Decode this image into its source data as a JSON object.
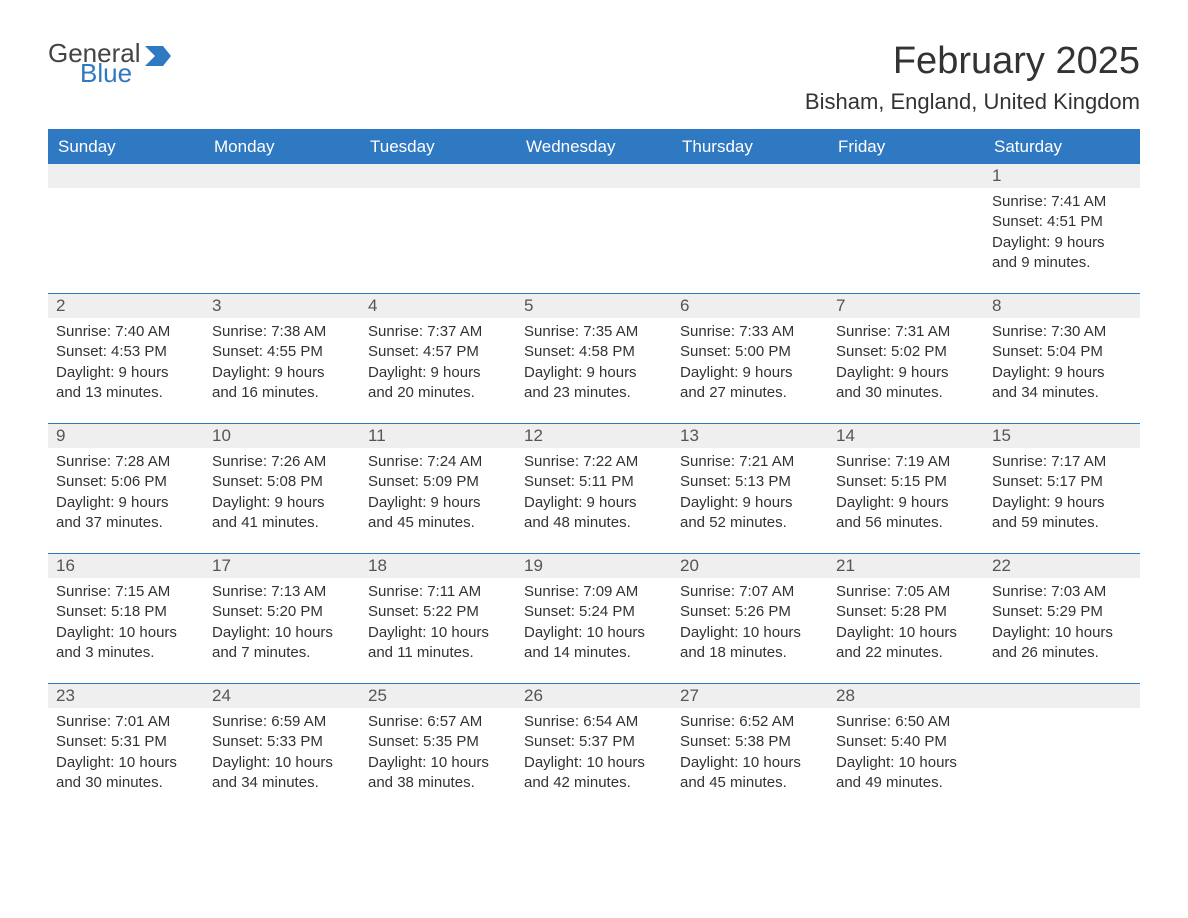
{
  "logo": {
    "word1": "General",
    "word2": "Blue"
  },
  "title": "February 2025",
  "location": "Bisham, England, United Kingdom",
  "colors": {
    "brand_blue": "#2f78c2",
    "header_text": "#ffffff",
    "daynum_bg": "#efefef",
    "text": "#333333",
    "background": "#ffffff"
  },
  "days_of_week": [
    "Sunday",
    "Monday",
    "Tuesday",
    "Wednesday",
    "Thursday",
    "Friday",
    "Saturday"
  ],
  "weeks": [
    [
      {
        "empty": true
      },
      {
        "empty": true
      },
      {
        "empty": true
      },
      {
        "empty": true
      },
      {
        "empty": true
      },
      {
        "empty": true
      },
      {
        "day": 1,
        "sunrise": "7:41 AM",
        "sunset": "4:51 PM",
        "daylight": "9 hours and 9 minutes."
      }
    ],
    [
      {
        "day": 2,
        "sunrise": "7:40 AM",
        "sunset": "4:53 PM",
        "daylight": "9 hours and 13 minutes."
      },
      {
        "day": 3,
        "sunrise": "7:38 AM",
        "sunset": "4:55 PM",
        "daylight": "9 hours and 16 minutes."
      },
      {
        "day": 4,
        "sunrise": "7:37 AM",
        "sunset": "4:57 PM",
        "daylight": "9 hours and 20 minutes."
      },
      {
        "day": 5,
        "sunrise": "7:35 AM",
        "sunset": "4:58 PM",
        "daylight": "9 hours and 23 minutes."
      },
      {
        "day": 6,
        "sunrise": "7:33 AM",
        "sunset": "5:00 PM",
        "daylight": "9 hours and 27 minutes."
      },
      {
        "day": 7,
        "sunrise": "7:31 AM",
        "sunset": "5:02 PM",
        "daylight": "9 hours and 30 minutes."
      },
      {
        "day": 8,
        "sunrise": "7:30 AM",
        "sunset": "5:04 PM",
        "daylight": "9 hours and 34 minutes."
      }
    ],
    [
      {
        "day": 9,
        "sunrise": "7:28 AM",
        "sunset": "5:06 PM",
        "daylight": "9 hours and 37 minutes."
      },
      {
        "day": 10,
        "sunrise": "7:26 AM",
        "sunset": "5:08 PM",
        "daylight": "9 hours and 41 minutes."
      },
      {
        "day": 11,
        "sunrise": "7:24 AM",
        "sunset": "5:09 PM",
        "daylight": "9 hours and 45 minutes."
      },
      {
        "day": 12,
        "sunrise": "7:22 AM",
        "sunset": "5:11 PM",
        "daylight": "9 hours and 48 minutes."
      },
      {
        "day": 13,
        "sunrise": "7:21 AM",
        "sunset": "5:13 PM",
        "daylight": "9 hours and 52 minutes."
      },
      {
        "day": 14,
        "sunrise": "7:19 AM",
        "sunset": "5:15 PM",
        "daylight": "9 hours and 56 minutes."
      },
      {
        "day": 15,
        "sunrise": "7:17 AM",
        "sunset": "5:17 PM",
        "daylight": "9 hours and 59 minutes."
      }
    ],
    [
      {
        "day": 16,
        "sunrise": "7:15 AM",
        "sunset": "5:18 PM",
        "daylight": "10 hours and 3 minutes."
      },
      {
        "day": 17,
        "sunrise": "7:13 AM",
        "sunset": "5:20 PM",
        "daylight": "10 hours and 7 minutes."
      },
      {
        "day": 18,
        "sunrise": "7:11 AM",
        "sunset": "5:22 PM",
        "daylight": "10 hours and 11 minutes."
      },
      {
        "day": 19,
        "sunrise": "7:09 AM",
        "sunset": "5:24 PM",
        "daylight": "10 hours and 14 minutes."
      },
      {
        "day": 20,
        "sunrise": "7:07 AM",
        "sunset": "5:26 PM",
        "daylight": "10 hours and 18 minutes."
      },
      {
        "day": 21,
        "sunrise": "7:05 AM",
        "sunset": "5:28 PM",
        "daylight": "10 hours and 22 minutes."
      },
      {
        "day": 22,
        "sunrise": "7:03 AM",
        "sunset": "5:29 PM",
        "daylight": "10 hours and 26 minutes."
      }
    ],
    [
      {
        "day": 23,
        "sunrise": "7:01 AM",
        "sunset": "5:31 PM",
        "daylight": "10 hours and 30 minutes."
      },
      {
        "day": 24,
        "sunrise": "6:59 AM",
        "sunset": "5:33 PM",
        "daylight": "10 hours and 34 minutes."
      },
      {
        "day": 25,
        "sunrise": "6:57 AM",
        "sunset": "5:35 PM",
        "daylight": "10 hours and 38 minutes."
      },
      {
        "day": 26,
        "sunrise": "6:54 AM",
        "sunset": "5:37 PM",
        "daylight": "10 hours and 42 minutes."
      },
      {
        "day": 27,
        "sunrise": "6:52 AM",
        "sunset": "5:38 PM",
        "daylight": "10 hours and 45 minutes."
      },
      {
        "day": 28,
        "sunrise": "6:50 AM",
        "sunset": "5:40 PM",
        "daylight": "10 hours and 49 minutes."
      },
      {
        "empty": true
      }
    ]
  ],
  "labels": {
    "sunrise": "Sunrise:",
    "sunset": "Sunset:",
    "daylight": "Daylight:"
  }
}
